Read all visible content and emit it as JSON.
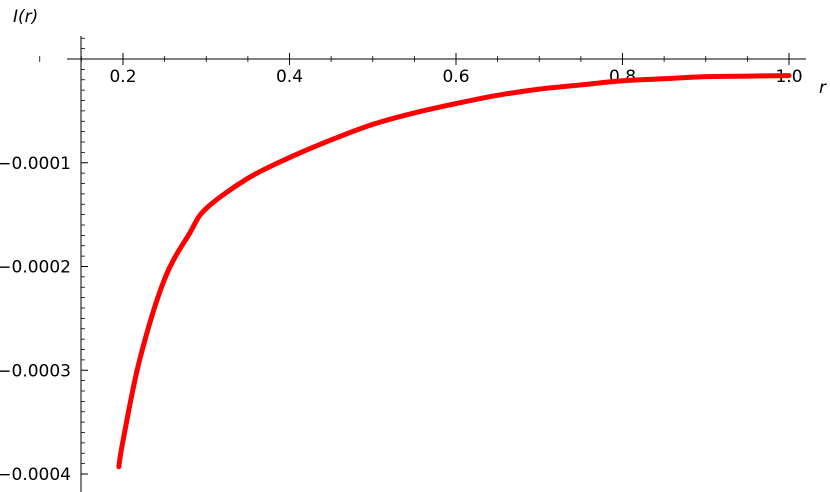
{
  "chart_data": {
    "type": "line",
    "xlabel": "r",
    "ylabel": "I(r)",
    "xlim": [
      0.15,
      1.02
    ],
    "ylim": [
      -0.00041,
      2.3e-05
    ],
    "x_ticks": [
      {
        "value": 0.2,
        "label": "0.2"
      },
      {
        "value": 0.4,
        "label": "0.4"
      },
      {
        "value": 0.6,
        "label": "0.6"
      },
      {
        "value": 0.8,
        "label": "0.8"
      },
      {
        "value": 1.0,
        "label": "1.0"
      }
    ],
    "y_ticks": [
      {
        "value": -0.0001,
        "label": "-0.0001"
      },
      {
        "value": -0.0002,
        "label": "-0.0002"
      },
      {
        "value": -0.0003,
        "label": "-0.0003"
      },
      {
        "value": -0.0004,
        "label": "-0.0004"
      }
    ],
    "grid": false,
    "series": [
      {
        "color": "#ff0000",
        "x": [
          0.195,
          0.2,
          0.22,
          0.25,
          0.28,
          0.3,
          0.35,
          0.4,
          0.45,
          0.5,
          0.55,
          0.6,
          0.65,
          0.7,
          0.75,
          0.8,
          0.85,
          0.9,
          0.95,
          1.0
        ],
        "y": [
          -0.000393,
          -0.000368,
          -0.00029,
          -0.000212,
          -0.000168,
          -0.000144,
          -0.000115,
          -9.5e-05,
          -7.8e-05,
          -6.3e-05,
          -5.2e-05,
          -4.3e-05,
          -3.5e-05,
          -2.9e-05,
          -2.5e-05,
          -2.1e-05,
          -1.9e-05,
          -1.7e-05,
          -1.65e-05,
          -1.6e-05
        ]
      }
    ]
  }
}
